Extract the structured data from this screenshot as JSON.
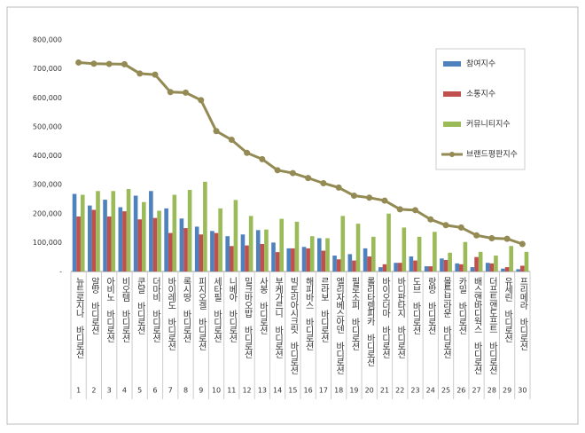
{
  "chart_data": {
    "type": "bar-line",
    "categories": [
      "뉴트로지나 바디로션",
      "알방 바디로션",
      "아비노 바디로션",
      "비오템 바디로션",
      "쿤달 바디로션",
      "더마비 바디로션",
      "바이레도 바디로션",
      "록시땅 바디로션",
      "피지오겔 바디로션",
      "세타필 바디로션",
      "니베아 바디로션",
      "밀크바오밥 바디로션",
      "사봉 바디로션",
      "부케가르니 바디로션",
      "빅토리아시크릿 바디로션",
      "해피바스 바디로션",
      "르라보 바디로션",
      "엘리자베스아덴 바디로션",
      "필로소피 바디로션",
      "롤리타렘피카 바디로션",
      "바이오더마 바디로션",
      "바디판타지 바디로션",
      "도브 바디로션",
      "랑방 바디로션",
      "몰튼브라운 바디로션",
      "카밀 바디로션",
      "배스앤바디웍스 바디로션",
      "더프트앤도프트 바디로션",
      "유세린 바디로션",
      "프리메라 바디로션"
    ],
    "ranks": [
      1,
      2,
      3,
      4,
      5,
      6,
      7,
      8,
      9,
      10,
      11,
      12,
      13,
      14,
      15,
      16,
      17,
      18,
      19,
      20,
      21,
      22,
      23,
      24,
      25,
      26,
      27,
      28,
      29,
      30
    ],
    "series": [
      {
        "name": "참여지수",
        "type": "bar",
        "color": "#4f81bd",
        "values": [
          268000,
          228000,
          248000,
          222000,
          262000,
          278000,
          218000,
          183000,
          155000,
          140000,
          122000,
          128000,
          143000,
          100000,
          80000,
          85000,
          115000,
          55000,
          60000,
          80000,
          15000,
          30000,
          52000,
          18000,
          45000,
          28000,
          15000,
          30000,
          10000,
          8000
        ]
      },
      {
        "name": "소통지수",
        "type": "bar",
        "color": "#c0504d",
        "values": [
          190000,
          213000,
          190000,
          208000,
          180000,
          185000,
          133000,
          150000,
          128000,
          133000,
          88000,
          90000,
          95000,
          67000,
          80000,
          80000,
          72000,
          42000,
          38000,
          52000,
          25000,
          30000,
          38000,
          18000,
          40000,
          25000,
          50000,
          28000,
          15000,
          20000
        ]
      },
      {
        "name": "커뮤니티지수",
        "type": "bar",
        "color": "#9bbb59",
        "values": [
          265000,
          278000,
          278000,
          285000,
          240000,
          210000,
          265000,
          282000,
          310000,
          218000,
          247000,
          192000,
          145000,
          182000,
          172000,
          122000,
          115000,
          192000,
          165000,
          120000,
          200000,
          152000,
          120000,
          137000,
          65000,
          102000,
          68000,
          55000,
          88000,
          68000
        ]
      },
      {
        "name": "브랜드평판지수",
        "type": "line",
        "color": "#948a54",
        "values": [
          722000,
          718000,
          717000,
          716000,
          684000,
          680000,
          620000,
          618000,
          592000,
          485000,
          455000,
          410000,
          388000,
          350000,
          340000,
          323000,
          305000,
          290000,
          262000,
          255000,
          245000,
          215000,
          212000,
          180000,
          160000,
          152000,
          125000,
          115000,
          113000,
          95000
        ]
      }
    ],
    "ylim": [
      0,
      800000
    ],
    "yticks": [
      {
        "value": 0,
        "label": "-"
      },
      {
        "value": 100000,
        "label": "100,000"
      },
      {
        "value": 200000,
        "label": "200,000"
      },
      {
        "value": 300000,
        "label": "300,000"
      },
      {
        "value": 400000,
        "label": "400,000"
      },
      {
        "value": 500000,
        "label": "500,000"
      },
      {
        "value": 600000,
        "label": "600,000"
      },
      {
        "value": 700000,
        "label": "700,000"
      },
      {
        "value": 800000,
        "label": "800,000"
      }
    ],
    "grid": false,
    "legend": "top-right"
  }
}
